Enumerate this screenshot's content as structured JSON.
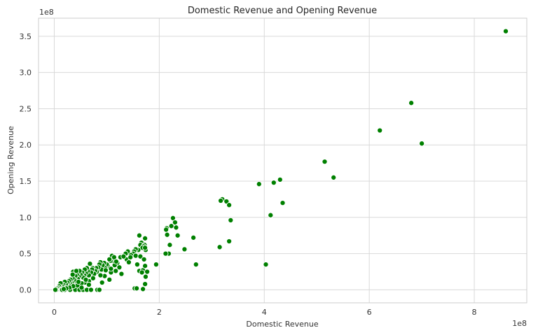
{
  "chart_data": {
    "type": "scatter",
    "title": "Domestic Revenue and Opening Revenue",
    "xlabel": "Domestic Revenue",
    "ylabel": "Opening Revenue",
    "x_offset_label": "1e8",
    "y_offset_label": "1e8",
    "xlim": [
      -0.3,
      9.0
    ],
    "ylim": [
      -0.18,
      3.75
    ],
    "x_ticks": [
      0,
      2,
      4,
      6,
      8
    ],
    "x_tick_labels": [
      "0",
      "2",
      "4",
      "6",
      "8"
    ],
    "y_ticks": [
      0.0,
      0.5,
      1.0,
      1.5,
      2.0,
      2.5,
      3.0,
      3.5
    ],
    "y_tick_labels": [
      "0.0",
      "0.5",
      "1.0",
      "1.5",
      "2.0",
      "2.5",
      "3.0",
      "3.5"
    ],
    "grid": true,
    "point_color": "#008000",
    "point_edge_color": "#ffffff",
    "x_unit_multiplier": "1e8",
    "y_unit_multiplier": "1e8",
    "points": [
      [
        8.6,
        3.57
      ],
      [
        6.8,
        2.58
      ],
      [
        6.2,
        2.2
      ],
      [
        7.0,
        2.02
      ],
      [
        5.15,
        1.77
      ],
      [
        5.32,
        1.55
      ],
      [
        4.3,
        1.52
      ],
      [
        3.9,
        1.46
      ],
      [
        4.18,
        1.48
      ],
      [
        4.35,
        1.2
      ],
      [
        4.12,
        1.03
      ],
      [
        4.03,
        0.35
      ],
      [
        3.2,
        1.25
      ],
      [
        3.17,
        1.23
      ],
      [
        3.28,
        1.22
      ],
      [
        3.33,
        1.17
      ],
      [
        3.36,
        0.96
      ],
      [
        3.33,
        0.67
      ],
      [
        3.15,
        0.59
      ],
      [
        2.65,
        0.72
      ],
      [
        2.7,
        0.35
      ],
      [
        2.48,
        0.56
      ],
      [
        2.26,
        0.99
      ],
      [
        2.3,
        0.93
      ],
      [
        2.32,
        0.86
      ],
      [
        2.23,
        0.88
      ],
      [
        2.35,
        0.75
      ],
      [
        2.14,
        0.85
      ],
      [
        2.13,
        0.83
      ],
      [
        2.15,
        0.76
      ],
      [
        2.2,
        0.62
      ],
      [
        2.18,
        0.5
      ],
      [
        2.12,
        0.5
      ],
      [
        1.62,
        0.75
      ],
      [
        1.73,
        0.71
      ],
      [
        1.66,
        0.65
      ],
      [
        1.64,
        0.62
      ],
      [
        1.72,
        0.62
      ],
      [
        1.74,
        0.55
      ],
      [
        1.7,
        0.6
      ],
      [
        1.68,
        0.58
      ],
      [
        1.73,
        0.58
      ],
      [
        1.6,
        0.55
      ],
      [
        1.55,
        0.56
      ],
      [
        1.52,
        0.53
      ],
      [
        1.5,
        0.5
      ],
      [
        1.46,
        0.48
      ],
      [
        1.4,
        0.53
      ],
      [
        1.36,
        0.5
      ],
      [
        1.33,
        0.45
      ],
      [
        1.38,
        0.42
      ],
      [
        1.45,
        0.45
      ],
      [
        1.55,
        0.47
      ],
      [
        1.64,
        0.46
      ],
      [
        1.71,
        0.42
      ],
      [
        1.58,
        0.35
      ],
      [
        1.62,
        0.26
      ],
      [
        1.69,
        0.27
      ],
      [
        1.73,
        0.33
      ],
      [
        1.74,
        0.18
      ],
      [
        1.77,
        0.25
      ],
      [
        1.94,
        0.35
      ],
      [
        1.67,
        0.24
      ],
      [
        1.73,
        0.08
      ],
      [
        1.69,
        0.01
      ],
      [
        1.53,
        0.02
      ],
      [
        1.57,
        0.02
      ],
      [
        1.26,
        0.45
      ],
      [
        1.2,
        0.37
      ],
      [
        1.15,
        0.34
      ],
      [
        1.12,
        0.4
      ],
      [
        1.1,
        0.47
      ],
      [
        1.14,
        0.45
      ],
      [
        1.07,
        0.4
      ],
      [
        1.05,
        0.42
      ],
      [
        1.02,
        0.33
      ],
      [
        1.0,
        0.35
      ],
      [
        0.97,
        0.3
      ],
      [
        0.95,
        0.37
      ],
      [
        0.92,
        0.34
      ],
      [
        0.9,
        0.28
      ],
      [
        0.88,
        0.38
      ],
      [
        0.86,
        0.35
      ],
      [
        0.84,
        0.31
      ],
      [
        0.81,
        0.25
      ],
      [
        0.8,
        0.3
      ],
      [
        0.78,
        0.26
      ],
      [
        0.76,
        0.22
      ],
      [
        0.73,
        0.3
      ],
      [
        0.72,
        0.28
      ],
      [
        0.7,
        0.24
      ],
      [
        0.68,
        0.36
      ],
      [
        0.66,
        0.2
      ],
      [
        0.64,
        0.26
      ],
      [
        0.62,
        0.3
      ],
      [
        0.6,
        0.23
      ],
      [
        0.58,
        0.28
      ],
      [
        0.57,
        0.2
      ],
      [
        0.55,
        0.17
      ],
      [
        0.53,
        0.24
      ],
      [
        0.5,
        0.21
      ],
      [
        0.48,
        0.26
      ],
      [
        0.47,
        0.18
      ],
      [
        0.45,
        0.15
      ],
      [
        0.43,
        0.21
      ],
      [
        0.41,
        0.12
      ],
      [
        0.4,
        0.19
      ],
      [
        0.38,
        0.14
      ],
      [
        0.36,
        0.25
      ],
      [
        0.35,
        0.16
      ],
      [
        0.33,
        0.1
      ],
      [
        0.31,
        0.14
      ],
      [
        0.3,
        0.09
      ],
      [
        0.28,
        0.12
      ],
      [
        0.27,
        0.07
      ],
      [
        0.25,
        0.1
      ],
      [
        0.24,
        0.05
      ],
      [
        0.22,
        0.08
      ],
      [
        0.2,
        0.11
      ],
      [
        0.19,
        0.04
      ],
      [
        0.17,
        0.07
      ],
      [
        0.16,
        0.03
      ],
      [
        0.14,
        0.06
      ],
      [
        0.13,
        0.02
      ],
      [
        0.12,
        0.09
      ],
      [
        0.11,
        0.04
      ],
      [
        0.1,
        0.01
      ],
      [
        0.09,
        0.05
      ],
      [
        0.08,
        0.02
      ],
      [
        0.07,
        0.03
      ],
      [
        0.06,
        0.01
      ],
      [
        0.05,
        0.02
      ],
      [
        0.04,
        0.0
      ],
      [
        0.03,
        0.01
      ],
      [
        0.02,
        0.0
      ],
      [
        0.15,
        0.0
      ],
      [
        0.2,
        0.0
      ],
      [
        0.3,
        0.0
      ],
      [
        0.4,
        0.0
      ],
      [
        0.48,
        0.0
      ],
      [
        0.55,
        0.0
      ],
      [
        0.62,
        0.0
      ],
      [
        0.7,
        0.0
      ],
      [
        0.82,
        0.0
      ],
      [
        0.86,
        0.0
      ],
      [
        1.05,
        0.14
      ],
      [
        0.96,
        0.19
      ],
      [
        1.17,
        0.26
      ],
      [
        1.24,
        0.31
      ],
      [
        1.28,
        0.22
      ],
      [
        1.08,
        0.24
      ],
      [
        0.88,
        0.2
      ],
      [
        0.74,
        0.16
      ],
      [
        0.66,
        0.12
      ],
      [
        0.58,
        0.1
      ],
      [
        0.52,
        0.09
      ],
      [
        0.44,
        0.06
      ],
      [
        0.36,
        0.05
      ],
      [
        0.29,
        0.03
      ],
      [
        0.23,
        0.02
      ],
      [
        0.18,
        0.01
      ],
      [
        0.35,
        0.21
      ],
      [
        0.42,
        0.26
      ],
      [
        0.6,
        0.14
      ],
      [
        0.66,
        0.07
      ],
      [
        0.52,
        0.03
      ],
      [
        0.46,
        0.11
      ],
      [
        0.91,
        0.1
      ],
      [
        0.98,
        0.27
      ],
      [
        1.08,
        0.29
      ],
      [
        1.18,
        0.39
      ],
      [
        1.32,
        0.46
      ],
      [
        1.42,
        0.38
      ]
    ]
  }
}
